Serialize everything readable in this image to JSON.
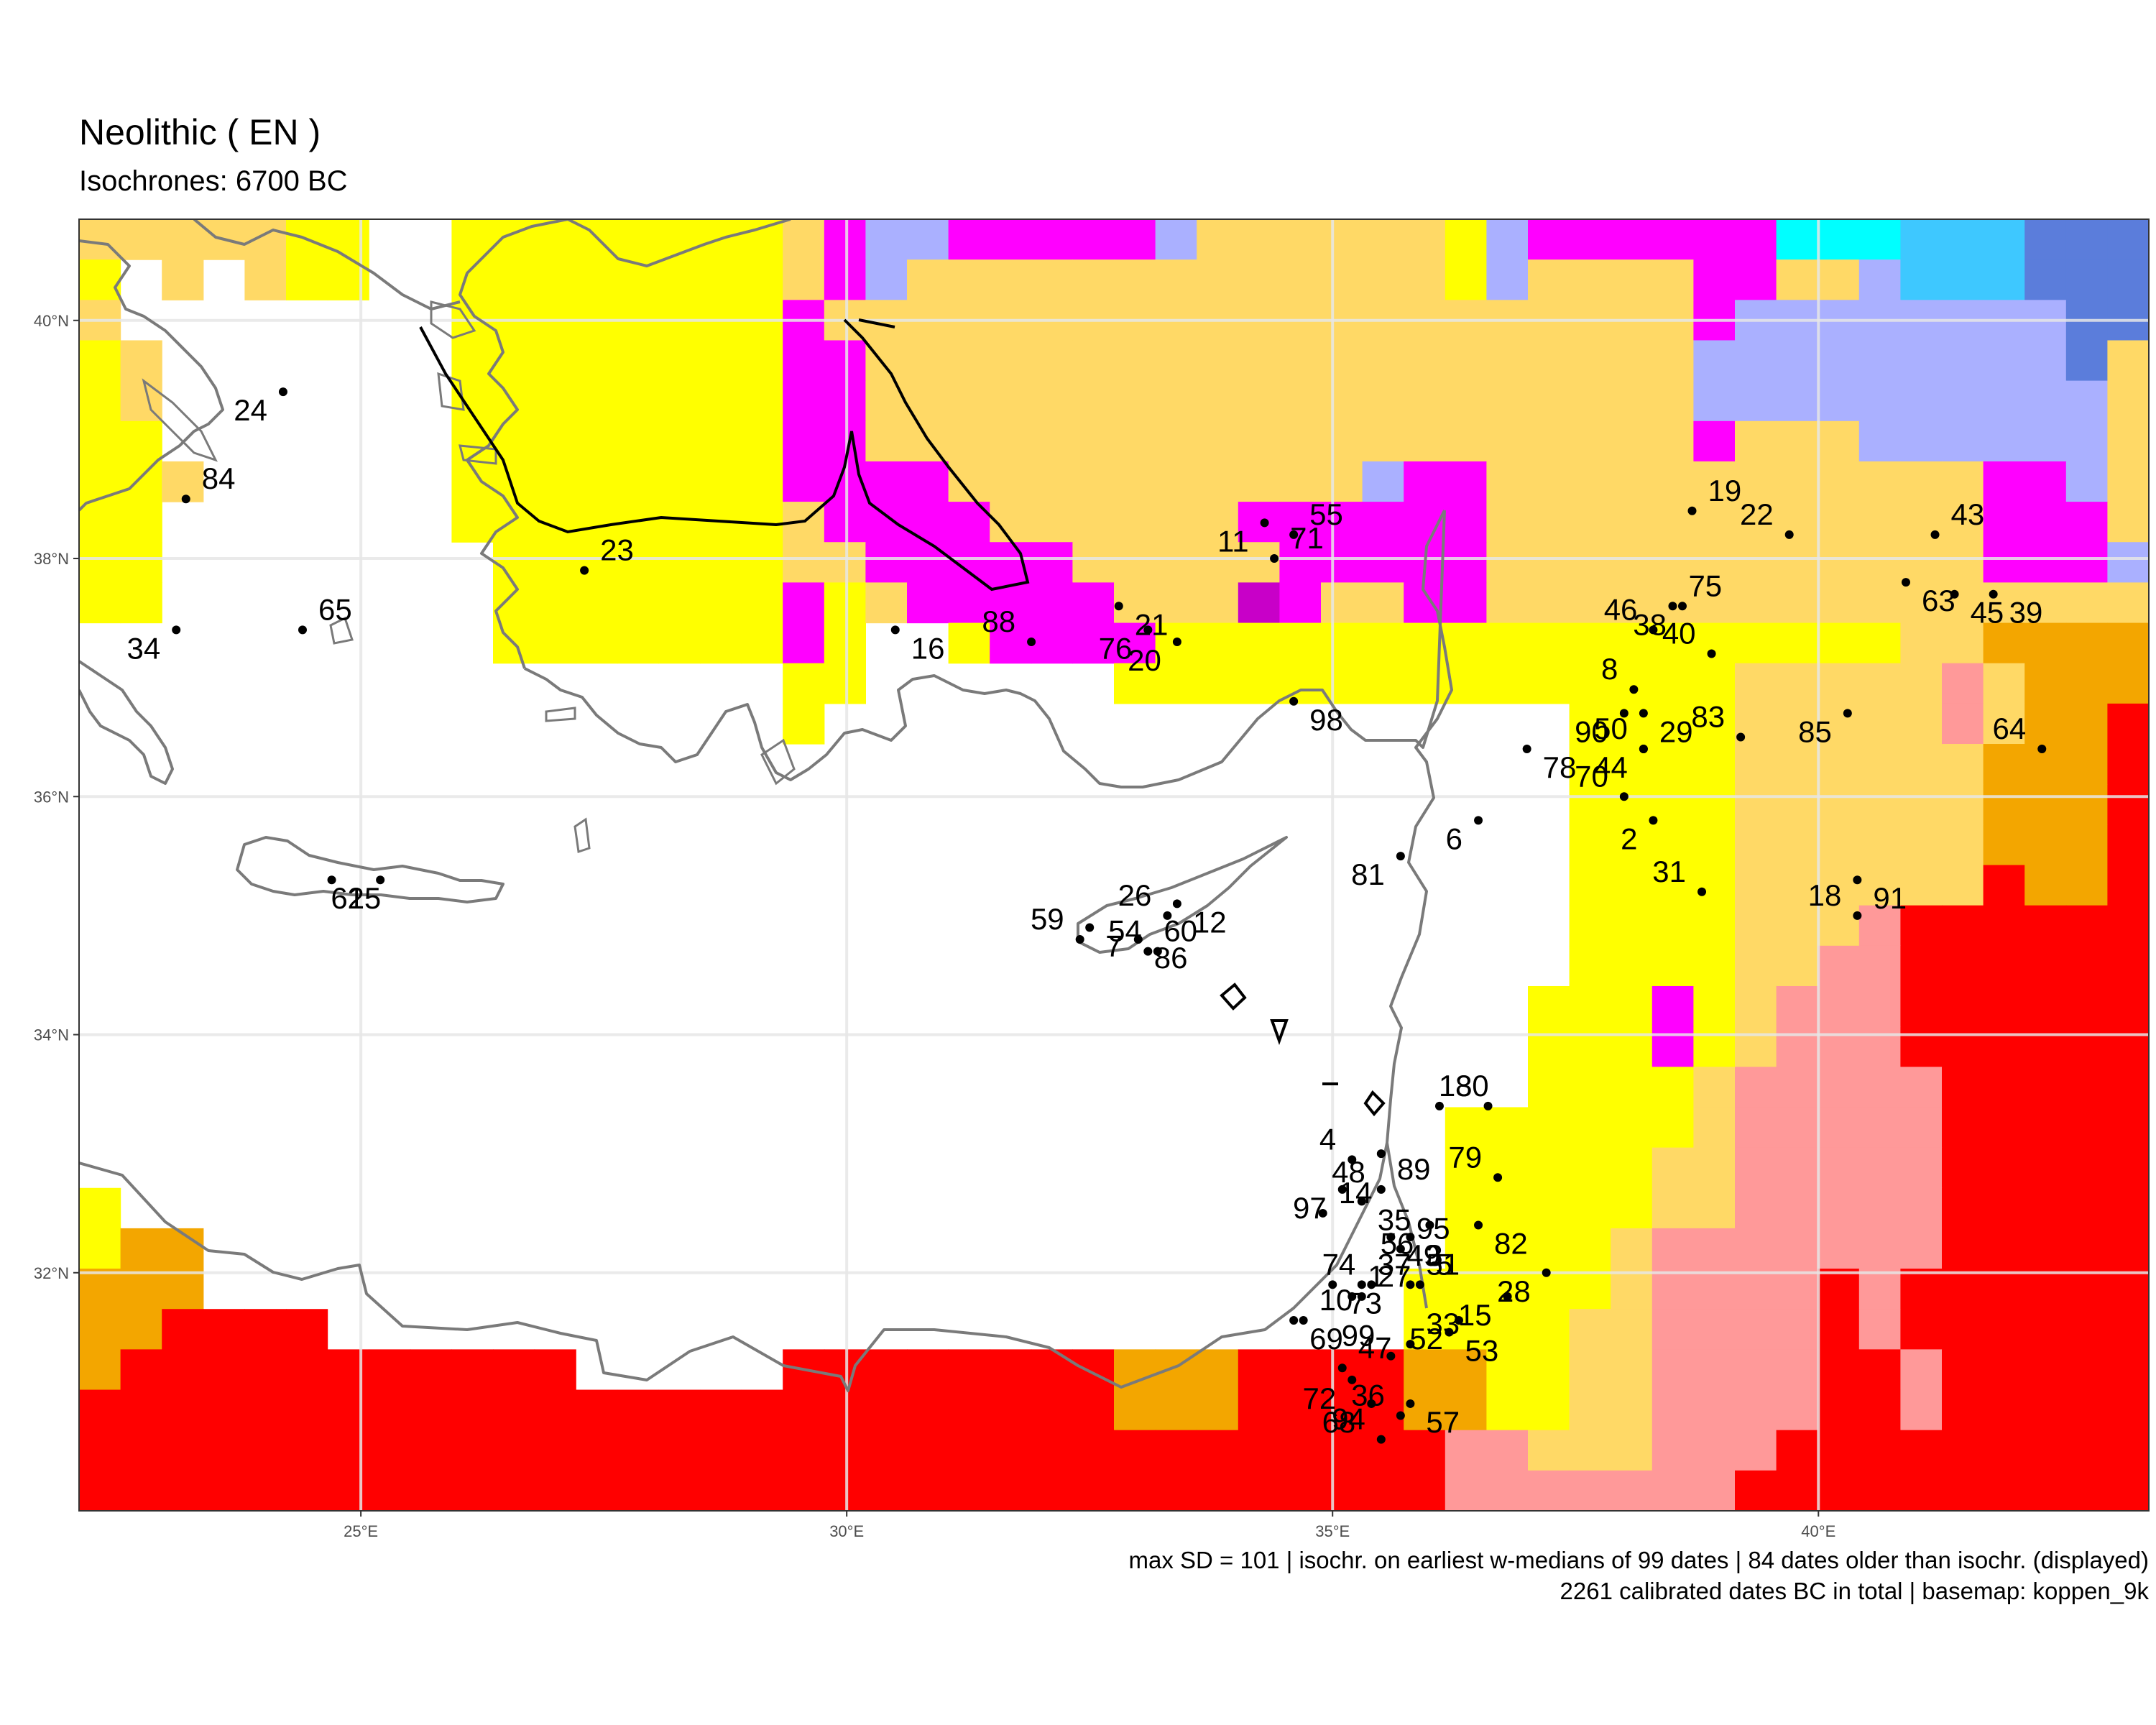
{
  "title": "Neolithic ( EN )",
  "subtitle": "Isochrones: 6700 BC",
  "caption": {
    "line1": "max SD = 101 | isochr. on earliest w-medians of 99 dates | 84 dates older than isochr. (displayed)",
    "line2": "2261 calibrated dates BC in total | basemap: koppen_9k"
  },
  "axes": {
    "x_ticks": [
      "25°E",
      "30°E",
      "35°E",
      "40°E"
    ],
    "y_ticks": [
      "40°N",
      "38°N",
      "36°N",
      "34°N",
      "32°N"
    ]
  },
  "palette": {
    "Y": "#ffff00",
    "O": "#ffd966",
    "T": "#f3a600",
    "R": "#ff0000",
    "P": "#ff9999",
    "M": "#ff00ff",
    "m": "#c800c8",
    "L": "#aab0ff",
    "B": "#5b7ddb",
    "C": "#00ffff",
    "S": "#3ec8ff",
    "W": "#ffffff"
  },
  "grid": [
    "OOOOOYYWWYYYYYYYYOMLLMMMMMLOOOOOOYLMMMMMMCCCSSSBBB",
    "YWOWOYYWWYYYYYYYYOMLOOOOOOOOOOOOOYLOOOOMMOOLSSSBBB",
    "OWWWWWWWWYYYYYYYYMOOOOOOOOOOOOOOOOOOOOOMLLLLLLLLBB",
    "YOWWWWWWWYYYYYYYYMMOOOOOOOOOOOOOOOOOOOOLLLLLLLLLBO",
    "YOWWWWWWWYYYYYYYYMMOOOOOOOOOOOOOOOOOOOOLLLLLLLLLLO",
    "YYWWWWWWWYYYYYYYYMMOOOOOOOOOOOOOOOOOOOOMOOOLLLLLLO",
    "YYOWWWWWWYYYYYYYYMMMMOOOOOOOOOOLMMOOOOOOOOOOOOMMLO",
    "YYWWWWWWWYYYYYYYYOMMMMOOOOOOMMMMMMOOOOOOOOOOOOMMMO",
    "YYWWWWWWWWYYYYYYYOOMMMMMOOOOOMMMMMOOOOOOOOOOOOMMML",
    "YYWWWWWWWWYYYYYYYMYOMMMMMOOOmMOOMMOOOOOOOOOOOOOOOO",
    "WWWWWWWWWWYYYYYYYMYWWYMMMMYYYYYYYYYYYYYYYYYYOOTTTT",
    "WWWWWWWWWWWWWWWWWYYWWWWWWYYYYYYYYYYYYYYYOOOOOPOTTT",
    "WWWWWWWWWWWWWWWWWYWWWWWWWWWWWWWWWWWWYYYYOOOOOPOTTR",
    "WWWWWWWWWWWWWWWWWWWWWWWWWWWWWWWWWWWWYYYYOOOOOOTTTR",
    "WWWWWWWWWWWWWWWWWWWWWWWWWWWWWWWWWWWWYYYYOOOOOOTTTR",
    "WWWWWWWWWWWWWWWWWWWWWWWWWWWWWWWWWWWWYYYYOOOOOOTTTR",
    "WWWWWWWWWWWWWWWWWWWWWWWWWWWWWWWWWWWWYYYYOOOOOORTTR",
    "WWWWWWWWWWWWWWWWWWWWWWWWWWWWWWWWWWWWYYYYOOOPRRRRRR",
    "WWWWWWWWWWWWWWWWWWWWWWWWWWWWWWWWWWWWYYYYOOPPRRRRRR",
    "WWWWWWWWWWWWWWWWWWWWWWWWWWWWWWWWWWWYYYMYOPPPRRRRRR",
    "WWWWWWWWWWWWWWWWWWWWWWWWWWWWWWWWWWWYYYMYOPPPRRRRRR",
    "WWWWWWWWWWWWWWWWWWWWWWWWWWWWWWWWWWWYYYYOPPPPPRRRRR",
    "WWWWWWWWWWWWWWWWWWWWWWWWWWWWWWWWWYYYYYYOPPPPPRRRRR",
    "WWWWWWWWWWWWWWWWWWWWWWWWWWWWWWWWWYYYYYOOPPPPPRRRRR",
    "YWWWWWWWWWWWWWWWWWWWWWWWWWWWWWWWWYYYYYOOPPPPPRRRRR",
    "YTTWWWWWWWWWWWWWWWWWWWWWWWWWWWWWWYYYYOPPPPPPPRRRRR",
    "TTTWWWWWWWWWWWWWWWWWWWWWWWWWWWWWYYYYYOPPPPRPRRRRRR",
    "TTRRRRWWWWWWWWWWWWWWWWWWWWWWWWWWYYYYOOPPPPRPRRRRRR",
    "TRRRRRRRRRRRWWWWWRRRRRRRRTTTRRRRTTYYOOPPPPRRPRRRRR",
    "RRRRRRRRRRRRRRRRRRRRRRRRRTTTRRRRTTYYOOPPPPRRPRRRRR",
    "RRRRRRRRRRRRRRRRRRRRRRRRRRRRRRRRRPPOOOPPPRRRRRRRRR",
    "RRRRRRRRRRRRRRRRRRRRRRRRRRRRRRRRRPPPPPPPRRRRRRRRRR"
  ],
  "sites": [
    {
      "id": "1",
      "lon": 35.2,
      "lat": 31.8
    },
    {
      "id": "2",
      "lon": 38.3,
      "lat": 35.8
    },
    {
      "id": "3",
      "lon": 35.8,
      "lat": 32.3
    },
    {
      "id": "4",
      "lon": 35.2,
      "lat": 32.95
    },
    {
      "id": "5",
      "lon": 35.9,
      "lat": 31.9
    },
    {
      "id": "6",
      "lon": 36.5,
      "lat": 35.8
    },
    {
      "id": "7",
      "lon": 32.5,
      "lat": 34.9
    },
    {
      "id": "8",
      "lon": 38.1,
      "lat": 36.9
    },
    {
      "id": "10",
      "lon": 34.7,
      "lat": 31.6
    },
    {
      "id": "11",
      "lon": 34.3,
      "lat": 38.3
    },
    {
      "id": "12",
      "lon": 33.4,
      "lat": 35.1
    },
    {
      "id": "13",
      "lon": 36.6,
      "lat": 33.4
    },
    {
      "id": "14",
      "lon": 34.9,
      "lat": 32.5
    },
    {
      "id": "15",
      "lon": 36.8,
      "lat": 31.8
    },
    {
      "id": "16",
      "lon": 30.5,
      "lat": 37.4
    },
    {
      "id": "18",
      "lon": 40.4,
      "lat": 35.0
    },
    {
      "id": "19",
      "lon": 38.7,
      "lat": 38.4
    },
    {
      "id": "20",
      "lon": 33.4,
      "lat": 37.3
    },
    {
      "id": "21",
      "lon": 32.8,
      "lat": 37.6
    },
    {
      "id": "22",
      "lon": 39.7,
      "lat": 38.2
    },
    {
      "id": "23",
      "lon": 27.3,
      "lat": 37.9
    },
    {
      "id": "24",
      "lon": 24.2,
      "lat": 39.4
    },
    {
      "id": "25",
      "lon": 24.7,
      "lat": 35.3
    },
    {
      "id": "26",
      "lon": 33.3,
      "lat": 35.0
    },
    {
      "id": "27",
      "lon": 35.3,
      "lat": 31.8
    },
    {
      "id": "28",
      "lon": 37.2,
      "lat": 32.0
    },
    {
      "id": "29",
      "lon": 38.2,
      "lat": 36.7
    },
    {
      "id": "31",
      "lon": 38.8,
      "lat": 35.2
    },
    {
      "id": "33",
      "lon": 35.8,
      "lat": 31.4
    },
    {
      "id": "34",
      "lon": 23.1,
      "lat": 37.4
    },
    {
      "id": "35",
      "lon": 35.3,
      "lat": 32.6
    },
    {
      "id": "36",
      "lon": 35.7,
      "lat": 30.8
    },
    {
      "id": "37",
      "lon": 35.3,
      "lat": 31.9
    },
    {
      "id": "38",
      "lon": 38.6,
      "lat": 37.6
    },
    {
      "id": "39",
      "lon": 41.8,
      "lat": 37.7
    },
    {
      "id": "40",
      "lon": 38.9,
      "lat": 37.2
    },
    {
      "id": "43",
      "lon": 41.2,
      "lat": 38.2
    },
    {
      "id": "44",
      "lon": 38.2,
      "lat": 36.4
    },
    {
      "id": "45",
      "lon": 41.4,
      "lat": 37.7
    },
    {
      "id": "46",
      "lon": 38.3,
      "lat": 37.4
    },
    {
      "id": "47",
      "lon": 35.1,
      "lat": 31.2
    },
    {
      "id": "48",
      "lon": 35.5,
      "lat": 33.0
    },
    {
      "id": "49",
      "lon": 35.6,
      "lat": 32.3
    },
    {
      "id": "50",
      "lon": 38.2,
      "lat": 36.4
    },
    {
      "id": "51",
      "lon": 35.8,
      "lat": 31.9
    },
    {
      "id": "52",
      "lon": 36.3,
      "lat": 31.6
    },
    {
      "id": "53",
      "lon": 36.2,
      "lat": 31.5
    },
    {
      "id": "54",
      "lon": 33.2,
      "lat": 34.7
    },
    {
      "id": "55",
      "lon": 34.6,
      "lat": 38.2
    },
    {
      "id": "56",
      "lon": 36.0,
      "lat": 32.4
    },
    {
      "id": "57",
      "lon": 35.8,
      "lat": 30.9
    },
    {
      "id": "59",
      "lon": 32.4,
      "lat": 34.8
    },
    {
      "id": "60",
      "lon": 33.1,
      "lat": 34.7
    },
    {
      "id": "61",
      "lon": 25.2,
      "lat": 35.3
    },
    {
      "id": "63",
      "lon": 40.9,
      "lat": 37.8
    },
    {
      "id": "64",
      "lon": 42.3,
      "lat": 36.4
    },
    {
      "id": "65",
      "lon": 24.4,
      "lat": 37.4
    },
    {
      "id": "68",
      "lon": 35.4,
      "lat": 30.9
    },
    {
      "id": "69",
      "lon": 34.6,
      "lat": 31.6
    },
    {
      "id": "70",
      "lon": 38.0,
      "lat": 36.0
    },
    {
      "id": "71",
      "lon": 34.4,
      "lat": 38.0
    },
    {
      "id": "72",
      "lon": 35.2,
      "lat": 31.1
    },
    {
      "id": "73",
      "lon": 35.0,
      "lat": 31.9
    },
    {
      "id": "74",
      "lon": 35.4,
      "lat": 31.9
    },
    {
      "id": "75",
      "lon": 38.5,
      "lat": 37.6
    },
    {
      "id": "76",
      "lon": 33.1,
      "lat": 37.4
    },
    {
      "id": "78",
      "lon": 37.0,
      "lat": 36.4
    },
    {
      "id": "79",
      "lon": 36.7,
      "lat": 32.8
    },
    {
      "id": "80",
      "lon": 36.1,
      "lat": 33.4
    },
    {
      "id": "81",
      "lon": 35.7,
      "lat": 35.5
    },
    {
      "id": "82",
      "lon": 36.5,
      "lat": 32.4
    },
    {
      "id": "83",
      "lon": 39.2,
      "lat": 36.5
    },
    {
      "id": "84",
      "lon": 23.2,
      "lat": 38.5
    },
    {
      "id": "85",
      "lon": 40.3,
      "lat": 36.7
    },
    {
      "id": "86",
      "lon": 33.0,
      "lat": 34.8
    },
    {
      "id": "88",
      "lon": 31.9,
      "lat": 37.3
    },
    {
      "id": "89",
      "lon": 35.5,
      "lat": 32.7
    },
    {
      "id": "90",
      "lon": 38.0,
      "lat": 36.7
    },
    {
      "id": "91",
      "lon": 40.4,
      "lat": 35.3
    },
    {
      "id": "94",
      "lon": 35.5,
      "lat": 30.6
    },
    {
      "id": "95",
      "lon": 35.7,
      "lat": 32.2
    },
    {
      "id": "97",
      "lon": 35.1,
      "lat": 32.7
    },
    {
      "id": "98",
      "lon": 34.6,
      "lat": 36.8
    },
    {
      "id": "99",
      "lon": 35.6,
      "lat": 31.3
    }
  ]
}
